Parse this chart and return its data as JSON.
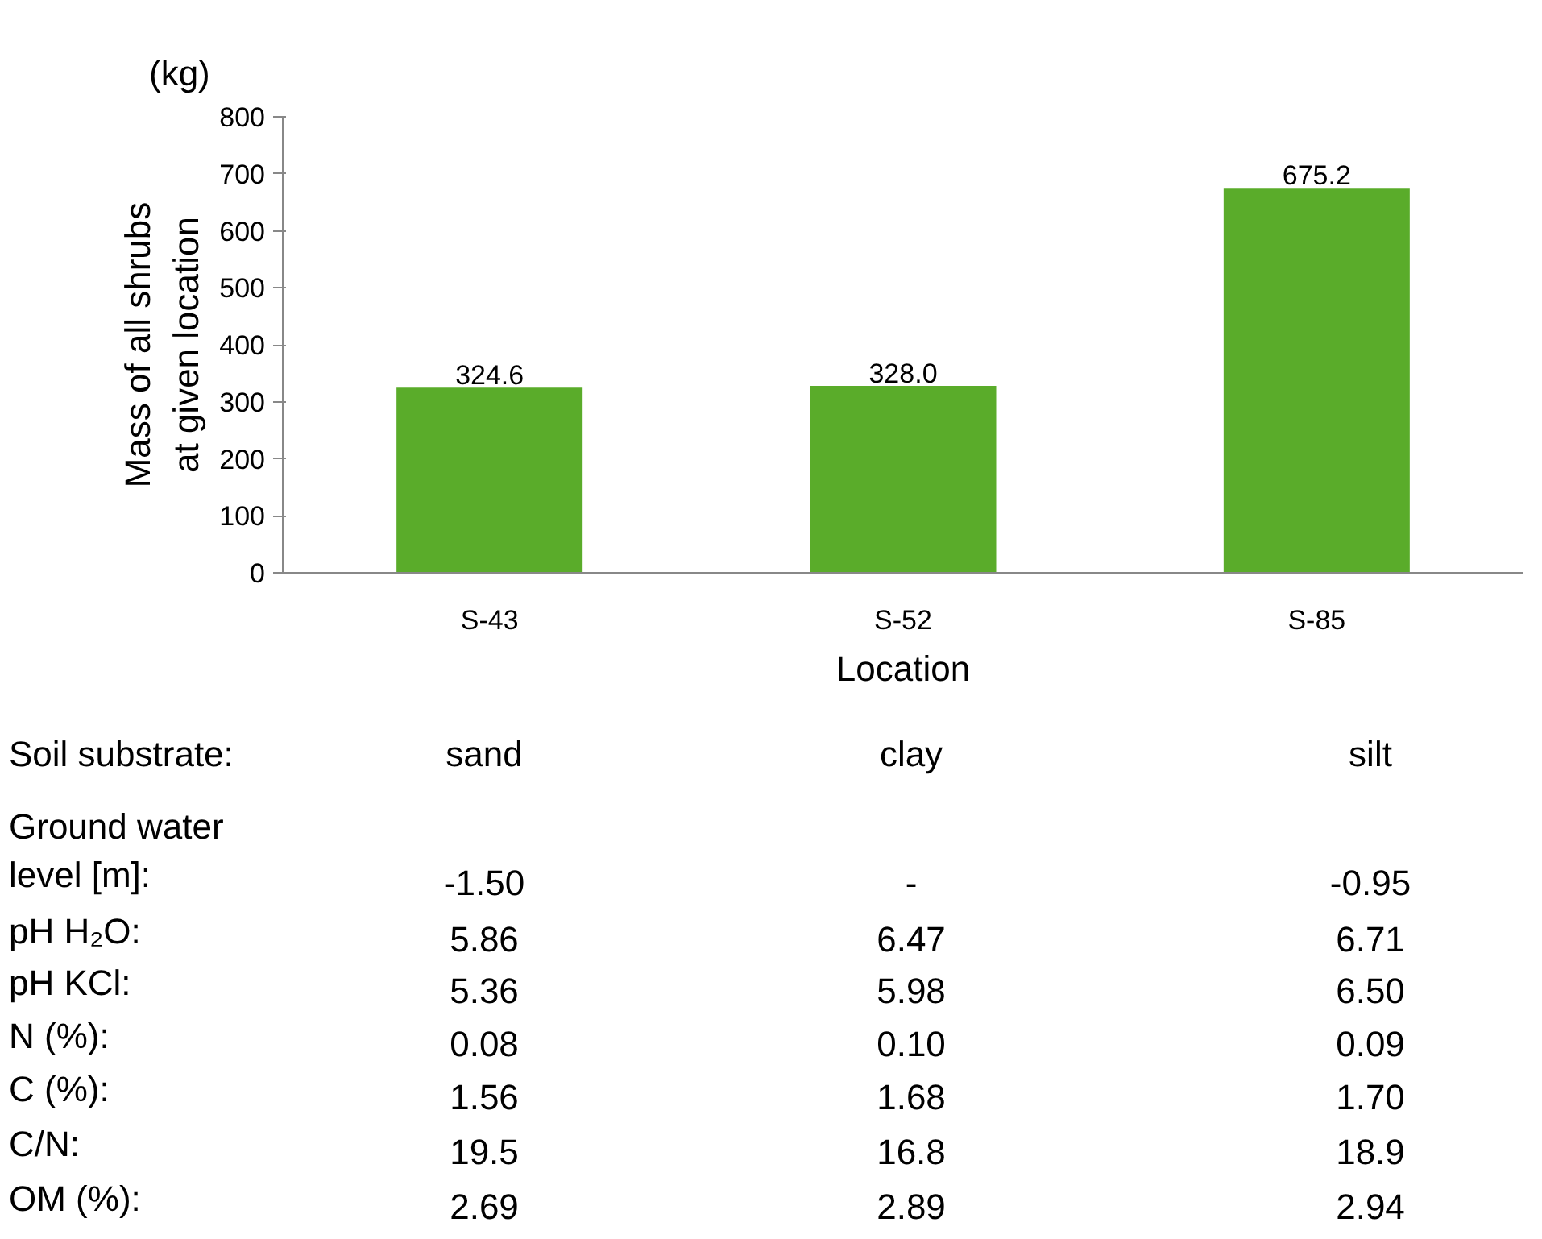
{
  "chart_data": {
    "type": "bar",
    "xlabel": "Location",
    "ylabel": "Mass of all shrubs\nat given location",
    "categories": [
      "S-43",
      "S-52",
      "S-85"
    ],
    "values": [
      324.6,
      328.0,
      675.2
    ],
    "value_labels": [
      "324.6",
      "328.0",
      "675.2"
    ],
    "color": "#5aac2a",
    "ylim": [
      0,
      800
    ],
    "yticks": [
      0,
      100,
      200,
      300,
      400,
      500,
      600,
      700,
      800
    ],
    "grid": false,
    "annotations": [
      "(kg)",
      "Soil substrate:",
      "sand",
      "clay",
      "silt",
      "Ground water\nlevel [m]:",
      "-1.50",
      "-",
      "-0.95",
      "pH H₂O:",
      "5.86",
      "6.47",
      "6.71",
      "pH KCl:",
      "5.36",
      "5.98",
      "6.50",
      "N (%):",
      "0.08",
      "0.10",
      "0.09",
      "C (%):",
      "1.56",
      "1.68",
      "1.70",
      "C/N:",
      "19.5",
      "16.8",
      "18.9",
      "OM (%):",
      "2.69",
      "2.89",
      "2.94"
    ]
  }
}
